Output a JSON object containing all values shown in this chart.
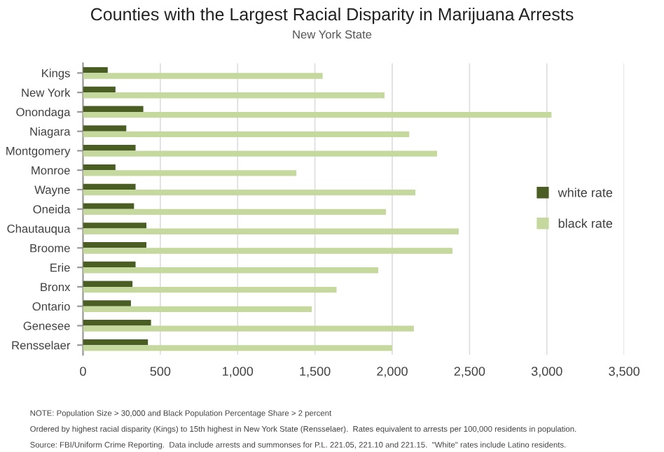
{
  "chart_data": {
    "type": "bar",
    "orientation": "horizontal",
    "title": "Counties with the Largest Racial Disparity in Marijuana Arrests",
    "subtitle": "New York State",
    "categories": [
      "Kings",
      "New York",
      "Onondaga",
      "Niagara",
      "Montgomery",
      "Monroe",
      "Wayne",
      "Oneida",
      "Chautauqua",
      "Broome",
      "Erie",
      "Bronx",
      "Ontario",
      "Genesee",
      "Rensselaer"
    ],
    "series": [
      {
        "name": "white rate",
        "color": "#4a5e23",
        "values": [
          160,
          210,
          390,
          280,
          340,
          210,
          340,
          330,
          410,
          410,
          340,
          320,
          310,
          440,
          420
        ]
      },
      {
        "name": "black rate",
        "color": "#c5d89e",
        "values": [
          1550,
          1950,
          3030,
          2110,
          2290,
          1380,
          2150,
          1960,
          2430,
          2390,
          1910,
          1640,
          1480,
          2140,
          2000
        ]
      }
    ],
    "xlim": [
      0,
      3500
    ],
    "xticks": [
      {
        "value": 0,
        "label": "0"
      },
      {
        "value": 500,
        "label": "500"
      },
      {
        "value": 1000,
        "label": "1,000"
      },
      {
        "value": 1500,
        "label": "1,500"
      },
      {
        "value": 2000,
        "label": "2,000"
      },
      {
        "value": 2500,
        "label": "2,500"
      },
      {
        "value": 3000,
        "label": "3,000"
      },
      {
        "value": 3500,
        "label": "3,500"
      }
    ],
    "grid": "x",
    "legend": "right",
    "annotations": [
      "NOTE: Population Size > 30,000 and Black Population Percentage Share > 2 percent",
      "Ordered by highest racial disparity (Kings) to 15th highest in New York State (Rensselaer).  Rates equivalent to arrests per 100,000 residents in population.",
      "Source: FBI/Uniform Crime Reporting.  Data include arrests and summonses for P.L. 221.05, 221.10 and 221.15.  \"White\" rates include Latino residents."
    ]
  }
}
